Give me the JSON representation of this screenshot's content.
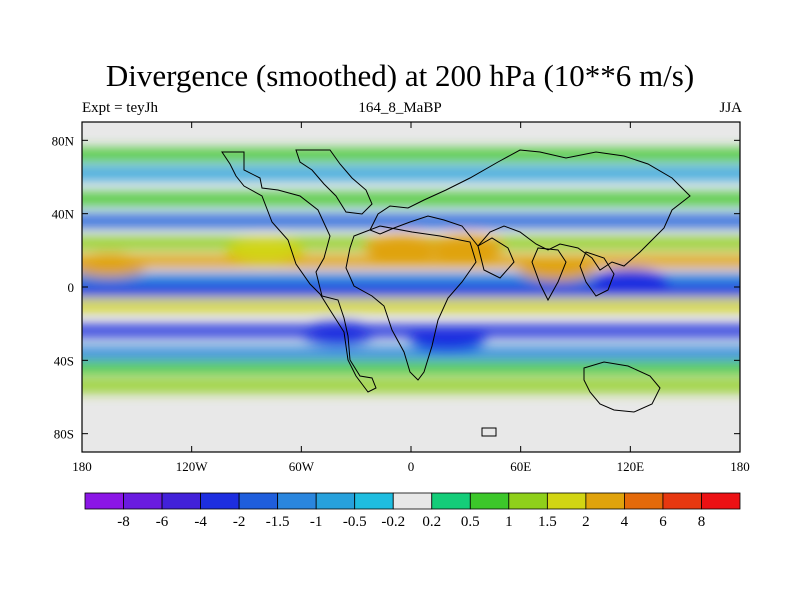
{
  "chart_data": {
    "type": "heatmap",
    "title": "Divergence (smoothed) at 200 hPa (10**6 m/s)",
    "subtitle_left": "Expt = teyJh",
    "subtitle_center": "164_8_MaBP",
    "subtitle_right": "JJA",
    "x_ticks": [
      {
        "value": -180,
        "label": "180"
      },
      {
        "value": -120,
        "label": "120W"
      },
      {
        "value": -60,
        "label": "60W"
      },
      {
        "value": 0,
        "label": "0"
      },
      {
        "value": 60,
        "label": "60E"
      },
      {
        "value": 120,
        "label": "120E"
      },
      {
        "value": 180,
        "label": "180"
      }
    ],
    "y_ticks": [
      {
        "value": 80,
        "label": "80N"
      },
      {
        "value": 40,
        "label": "40N"
      },
      {
        "value": 0,
        "label": "0"
      },
      {
        "value": -40,
        "label": "40S"
      },
      {
        "value": -80,
        "label": "80S"
      }
    ],
    "xlim": [
      -180,
      180
    ],
    "ylim": [
      -90,
      90
    ],
    "colorbar": {
      "boundaries": [
        "-8",
        "-6",
        "-4",
        "-2",
        "-1.5",
        "-1",
        "-0.5",
        "-0.2",
        "0.2",
        "0.5",
        "1",
        "1.5",
        "2",
        "4",
        "6",
        "8"
      ],
      "colors": [
        "#8b16e6",
        "#6a1be0",
        "#4221d9",
        "#1d2ee0",
        "#1f5edc",
        "#2a86de",
        "#27a1dc",
        "#1fbde0",
        "#e8e8e8",
        "#14cd79",
        "#3cc72a",
        "#8fd01a",
        "#d2d513",
        "#e0a30c",
        "#e46a0a",
        "#e73810",
        "#ec1114"
      ]
    },
    "bands": [
      {
        "lat": 72,
        "value": 0.8
      },
      {
        "lat": 62,
        "value": -0.6
      },
      {
        "lat": 48,
        "value": 0.7
      },
      {
        "lat": 36,
        "value": -1.7
      },
      {
        "lat": 24,
        "value": 1.2
      },
      {
        "lat": 14,
        "value": 2.2
      },
      {
        "lat": 4,
        "value": -1.2
      },
      {
        "lat": -2,
        "value": -2.5
      },
      {
        "lat": -10,
        "value": 1.6
      },
      {
        "lat": -24,
        "value": -2.5
      },
      {
        "lat": -36,
        "value": -1.1
      },
      {
        "lat": -44,
        "value": 0.8
      },
      {
        "lat": -54,
        "value": 1.0
      }
    ],
    "blobs": [
      {
        "lon": -40,
        "lat": -25,
        "value": -3.5
      },
      {
        "lon": 20,
        "lat": -28,
        "value": -3.0
      },
      {
        "lon": 30,
        "lat": 22,
        "value": 2.5
      },
      {
        "lon": -5,
        "lat": 22,
        "value": 3.0
      },
      {
        "lon": 80,
        "lat": 10,
        "value": 3.0
      },
      {
        "lon": -165,
        "lat": 12,
        "value": 3.5
      },
      {
        "lon": 120,
        "lat": 3,
        "value": -3.0
      },
      {
        "lon": -80,
        "lat": 20,
        "value": 1.5
      }
    ]
  }
}
